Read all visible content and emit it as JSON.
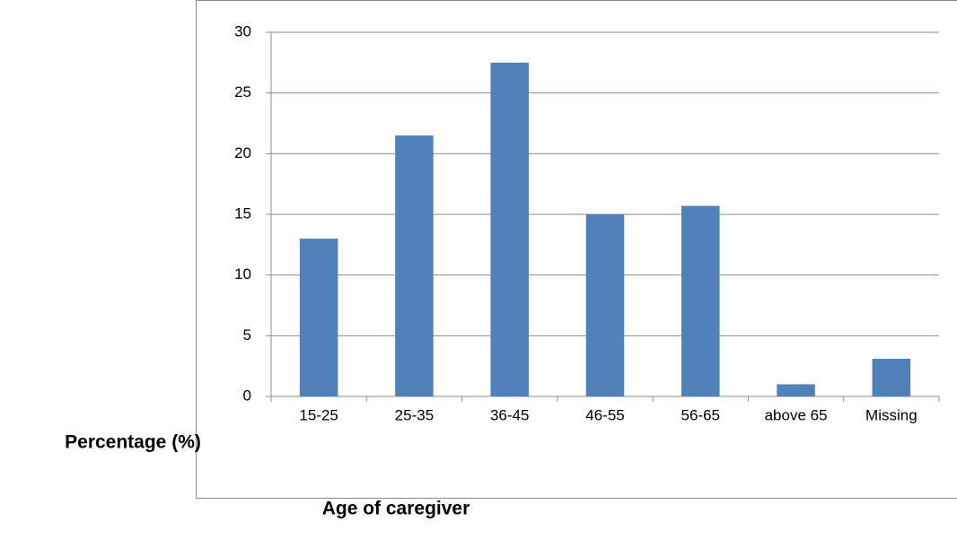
{
  "chart_data": {
    "type": "bar",
    "x_label": "Age of caregiver",
    "y_label": "Percentage (%)",
    "categories": [
      "15-25",
      "25-35",
      "36-45",
      "46-55",
      "56-65",
      "above 65",
      "Missing"
    ],
    "values": [
      13,
      21.5,
      27.5,
      15,
      15.7,
      1,
      3.1
    ],
    "color": "#4f81bd",
    "ylim": [
      0,
      30
    ],
    "yticks": [
      0,
      5,
      10,
      15,
      20,
      25,
      30
    ],
    "grid": true
  }
}
